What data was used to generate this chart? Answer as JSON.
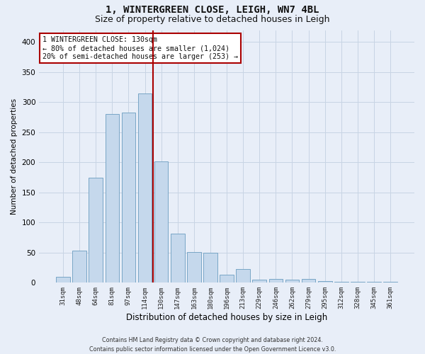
{
  "title1": "1, WINTERGREEN CLOSE, LEIGH, WN7 4BL",
  "title2": "Size of property relative to detached houses in Leigh",
  "xlabel": "Distribution of detached houses by size in Leigh",
  "ylabel": "Number of detached properties",
  "footer": "Contains HM Land Registry data © Crown copyright and database right 2024.\nContains public sector information licensed under the Open Government Licence v3.0.",
  "categories": [
    "31sqm",
    "48sqm",
    "64sqm",
    "81sqm",
    "97sqm",
    "114sqm",
    "130sqm",
    "147sqm",
    "163sqm",
    "180sqm",
    "196sqm",
    "213sqm",
    "229sqm",
    "246sqm",
    "262sqm",
    "279sqm",
    "295sqm",
    "312sqm",
    "328sqm",
    "345sqm",
    "361sqm"
  ],
  "values": [
    10,
    53,
    175,
    280,
    283,
    315,
    202,
    82,
    51,
    50,
    13,
    23,
    5,
    6,
    5,
    6,
    3,
    1,
    1,
    1,
    1
  ],
  "bar_color": "#c5d8ec",
  "bar_edge_color": "#6a9cbf",
  "highlight_line_color": "#aa0000",
  "annotation_line1": "1 WINTERGREEN CLOSE: 130sqm",
  "annotation_line2": "← 80% of detached houses are smaller (1,024)",
  "annotation_line3": "20% of semi-detached houses are larger (253) →",
  "annotation_box_color": "#ffffff",
  "annotation_box_edge": "#aa0000",
  "grid_color": "#c8d4e4",
  "background_color": "#e8eef8",
  "ylim": [
    0,
    420
  ],
  "yticks": [
    0,
    50,
    100,
    150,
    200,
    250,
    300,
    350,
    400
  ],
  "title1_fontsize": 10,
  "title2_fontsize": 9
}
